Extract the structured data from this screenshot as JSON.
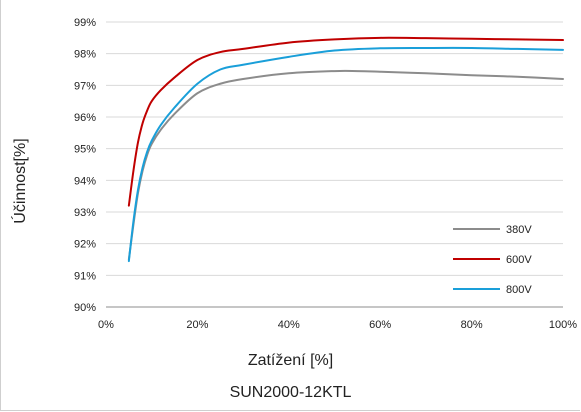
{
  "chart_data": {
    "type": "line",
    "title": "SUN2000-12KTL",
    "xlabel": "Zatížení [%]",
    "ylabel": "Účinnost[%]",
    "xlim": [
      0,
      100
    ],
    "ylim": [
      90,
      99
    ],
    "x_ticks": [
      "0%",
      "20%",
      "40%",
      "60%",
      "80%",
      "100%"
    ],
    "y_ticks": [
      "90%",
      "91%",
      "92%",
      "93%",
      "94%",
      "95%",
      "96%",
      "97%",
      "98%",
      "99%"
    ],
    "grid": "horizontal",
    "legend_position": "bottom-right",
    "series": [
      {
        "name": "380V",
        "color": "#8c8c8c",
        "x": [
          5,
          6,
          7,
          8,
          9,
          10,
          12,
          15,
          20,
          25,
          30,
          40,
          50,
          55,
          60,
          70,
          80,
          90,
          100
        ],
        "y": [
          91.5,
          92.6,
          93.6,
          94.3,
          94.8,
          95.15,
          95.6,
          96.1,
          96.75,
          97.05,
          97.2,
          97.38,
          97.45,
          97.45,
          97.43,
          97.38,
          97.32,
          97.27,
          97.2
        ]
      },
      {
        "name": "600V",
        "color": "#c00000",
        "x": [
          5,
          6,
          7,
          8,
          9,
          10,
          12,
          15,
          20,
          25,
          30,
          40,
          50,
          60,
          70,
          80,
          90,
          100
        ],
        "y": [
          93.2,
          94.3,
          95.2,
          95.8,
          96.2,
          96.5,
          96.85,
          97.25,
          97.8,
          98.05,
          98.15,
          98.35,
          98.45,
          98.5,
          98.49,
          98.47,
          98.45,
          98.43
        ]
      },
      {
        "name": "800V",
        "color": "#1a9fd9",
        "x": [
          5,
          6,
          7,
          8,
          9,
          10,
          12,
          15,
          20,
          25,
          30,
          40,
          50,
          60,
          70,
          80,
          90,
          100
        ],
        "y": [
          91.45,
          92.7,
          93.7,
          94.4,
          94.9,
          95.25,
          95.75,
          96.3,
          97.05,
          97.5,
          97.65,
          97.9,
          98.1,
          98.17,
          98.18,
          98.18,
          98.15,
          98.12
        ]
      }
    ]
  }
}
